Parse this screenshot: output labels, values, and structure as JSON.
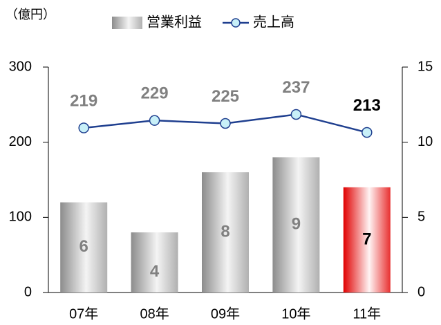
{
  "chart_data": {
    "type": "bar_line",
    "unit_label": "（億円）",
    "categories": [
      "07年",
      "08年",
      "09年",
      "10年",
      "11年"
    ],
    "series": [
      {
        "name": "営業利益",
        "type": "bar",
        "axis": "y2",
        "colors": [
          "gray",
          "gray",
          "gray",
          "gray",
          "red"
        ],
        "values": [
          6,
          4,
          8,
          9,
          7
        ]
      },
      {
        "name": "売上高",
        "type": "line",
        "axis": "y",
        "color": "#1f3f8f",
        "values": [
          219,
          229,
          225,
          237,
          213
        ]
      }
    ],
    "ylim": [
      0,
      300
    ],
    "yticks": [
      0,
      100,
      200,
      300
    ],
    "y2lim": [
      0,
      15
    ],
    "y2ticks": [
      0,
      5,
      10,
      15
    ]
  }
}
